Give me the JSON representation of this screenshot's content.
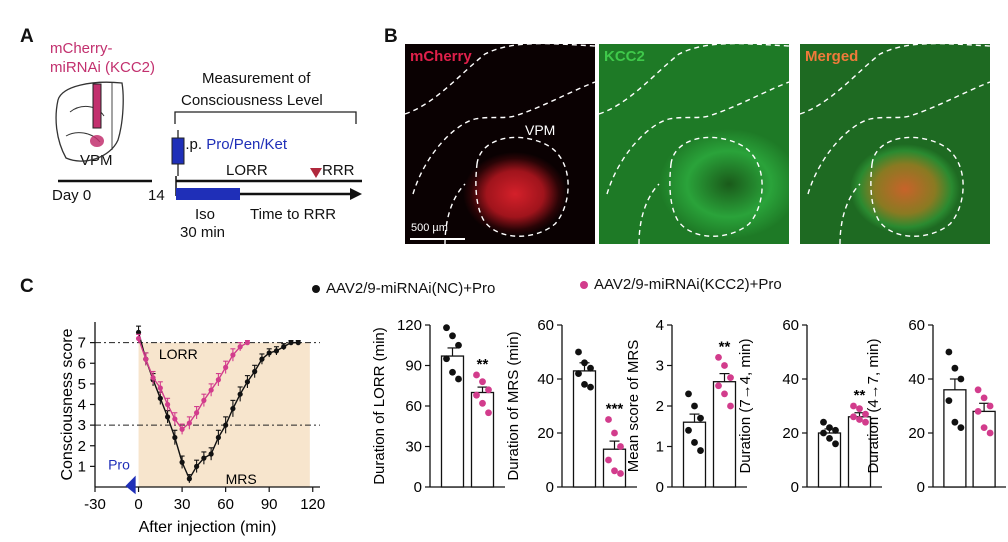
{
  "panel_labels": {
    "a": "A",
    "b": "B",
    "c": "C"
  },
  "panel_a": {
    "construct": "mCherry-\nmiRNAi (KCC2)",
    "construct_line1": "mCherry-",
    "construct_line2": "miRNAi (KCC2)",
    "measurement_line1": "Measurement of",
    "measurement_line2": "Consciousness Level",
    "region": "VPM",
    "injection_prefix": "i.p. ",
    "injection_drugs": "Pro/Pen/Ket",
    "lorr": "LORR",
    "rrr": "RRR",
    "day_label": "Day 0",
    "day14": "14",
    "iso": "Iso",
    "iso_duration": "30 min",
    "time_to_rrr": "Time to RRR",
    "colors": {
      "construct": "#c2306e",
      "iso_bar": "#1f2fb8",
      "arrow_head": "#b0283c",
      "syringe": "#1f2fb8"
    }
  },
  "panel_b": {
    "images": [
      {
        "label": "mCherry",
        "label_color": "#e0204a",
        "region_label": "VPM"
      },
      {
        "label": "KCC2",
        "label_color": "#3fc84a"
      },
      {
        "label": "Merged",
        "label_color": "#f07a3a"
      }
    ],
    "scale_bar": "500 µm"
  },
  "legend": [
    {
      "name": "AAV2/9-miRNAi(NC)+Pro",
      "color": "#111111"
    },
    {
      "name": "AAV2/9-miRNAi(KCC2)+Pro",
      "color": "#d23c8c"
    }
  ],
  "chart_data": [
    {
      "type": "line",
      "ylabel": "Consciousness score",
      "xlabel": "After injection (min)",
      "xticks": [
        -30,
        0,
        30,
        60,
        90,
        120
      ],
      "yticks": [
        1,
        2,
        3,
        4,
        5,
        6,
        7
      ],
      "xlim": [
        -30,
        125
      ],
      "ylim": [
        0,
        8
      ],
      "shaded": {
        "x": [
          0,
          118
        ]
      },
      "reference_lines": [
        7,
        3
      ],
      "annotations": {
        "lorr": "LORR",
        "mrs": "MRS",
        "pro": "Pro"
      },
      "series": [
        {
          "name": "AAV2/9-miRNAi(NC)+Pro",
          "color": "#111111",
          "x": [
            0,
            5,
            10,
            15,
            20,
            25,
            30,
            35,
            40,
            45,
            50,
            55,
            60,
            65,
            70,
            75,
            80,
            85,
            90,
            95,
            100,
            105,
            110
          ],
          "y": [
            7.5,
            6.2,
            5.2,
            4.3,
            3.4,
            2.4,
            1.2,
            0.4,
            1.0,
            1.4,
            1.6,
            2.4,
            3.0,
            3.8,
            4.5,
            5.1,
            5.6,
            6.2,
            6.5,
            6.6,
            6.8,
            7.0,
            7.0
          ],
          "err": [
            0.3,
            0.3,
            0.3,
            0.3,
            0.3,
            0.35,
            0.3,
            0.2,
            0.3,
            0.3,
            0.3,
            0.35,
            0.4,
            0.4,
            0.35,
            0.3,
            0.3,
            0.25,
            0.2,
            0.2,
            0.15,
            0.1,
            0.1
          ]
        },
        {
          "name": "AAV2/9-miRNAi(KCC2)+Pro",
          "color": "#d23c8c",
          "x": [
            0,
            5,
            10,
            15,
            20,
            25,
            30,
            35,
            40,
            45,
            50,
            55,
            60,
            65,
            70,
            75
          ],
          "y": [
            7.2,
            6.2,
            5.3,
            4.8,
            4.0,
            3.3,
            2.8,
            3.1,
            3.6,
            4.2,
            4.7,
            5.2,
            5.8,
            6.4,
            6.8,
            7.0
          ],
          "err": [
            0.2,
            0.3,
            0.3,
            0.3,
            0.3,
            0.3,
            0.25,
            0.3,
            0.3,
            0.3,
            0.3,
            0.3,
            0.3,
            0.3,
            0.2,
            0.1
          ]
        }
      ]
    },
    {
      "type": "bar",
      "ylabel": "Duration of LORR (min)",
      "ylim": [
        0,
        120
      ],
      "yticks": [
        0,
        30,
        60,
        90,
        120
      ],
      "categories": [
        "AAV2/9-miRNAi(NC)+Pro",
        "AAV2/9-miRNAi(KCC2)+Pro"
      ],
      "values": [
        97,
        70
      ],
      "sem": [
        6,
        4
      ],
      "points": [
        [
          118,
          112,
          105,
          95,
          85,
          80
        ],
        [
          83,
          78,
          72,
          68,
          62,
          55
        ]
      ],
      "significance": "**"
    },
    {
      "type": "bar",
      "ylabel": "Duration of MRS (min)",
      "ylim": [
        0,
        60
      ],
      "yticks": [
        0,
        20,
        40,
        60
      ],
      "categories": [
        "AAV2/9-miRNAi(NC)+Pro",
        "AAV2/9-miRNAi(KCC2)+Pro"
      ],
      "values": [
        43,
        14
      ],
      "sem": [
        3,
        3
      ],
      "points": [
        [
          50,
          46,
          44,
          42,
          38,
          37
        ],
        [
          25,
          20,
          15,
          10,
          6,
          5
        ]
      ],
      "significance": "***"
    },
    {
      "type": "bar",
      "ylabel": "Mean score of MRS",
      "ylim": [
        0,
        4
      ],
      "yticks": [
        0,
        1,
        2,
        3,
        4
      ],
      "categories": [
        "AAV2/9-miRNAi(NC)+Pro",
        "AAV2/9-miRNAi(KCC2)+Pro"
      ],
      "values": [
        1.6,
        2.6
      ],
      "sem": [
        0.2,
        0.2
      ],
      "points": [
        [
          2.3,
          2.0,
          1.7,
          1.4,
          1.1,
          0.9
        ],
        [
          3.2,
          3.0,
          2.7,
          2.5,
          2.3,
          2.0
        ]
      ],
      "significance": "**"
    },
    {
      "type": "bar",
      "ylabel": "Duration (7→4, min)",
      "ylim": [
        0,
        60
      ],
      "yticks": [
        0,
        20,
        40,
        60
      ],
      "categories": [
        "AAV2/9-miRNAi(NC)+Pro",
        "AAV2/9-miRNAi(KCC2)+Pro"
      ],
      "values": [
        20,
        26
      ],
      "sem": [
        1.5,
        1.5
      ],
      "points": [
        [
          24,
          22,
          21,
          20,
          18,
          16
        ],
        [
          30,
          29,
          27,
          26,
          25,
          24
        ]
      ],
      "significance": "**"
    },
    {
      "type": "bar",
      "ylabel": "Duration (4→7, min)",
      "ylim": [
        0,
        60
      ],
      "yticks": [
        0,
        20,
        40,
        60
      ],
      "categories": [
        "AAV2/9-miRNAi(NC)+Pro",
        "AAV2/9-miRNAi(KCC2)+Pro"
      ],
      "values": [
        36,
        28
      ],
      "sem": [
        4,
        3
      ],
      "points": [
        [
          50,
          44,
          40,
          32,
          24,
          22
        ],
        [
          36,
          33,
          30,
          28,
          22,
          20
        ]
      ],
      "significance": ""
    }
  ]
}
